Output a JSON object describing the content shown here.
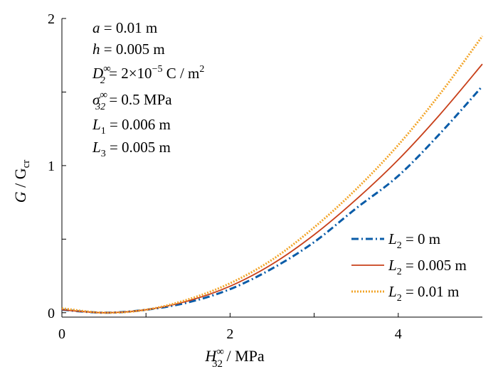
{
  "chart_data": {
    "type": "line",
    "xlabel": {
      "main": "H",
      "sup": "∞",
      "sub": "32",
      "tail": " / MPa"
    },
    "ylabel": {
      "main": "G",
      "mid": " / G",
      "sub": "cr"
    },
    "xlim": [
      0,
      5
    ],
    "ylim": [
      -0.03,
      2
    ],
    "xticks": [
      0,
      2,
      4
    ],
    "yticks": [
      0,
      1,
      2
    ],
    "x_minor_ticks": [
      1,
      3
    ],
    "y_minor_ticks": [
      0.5,
      1.5
    ],
    "grid": false,
    "legend_position": "bottom-right",
    "params": [
      {
        "sym": "a",
        "text": " = 0.01 m"
      },
      {
        "sym": "h",
        "text": " = 0.005 m"
      },
      {
        "sym": "D",
        "sup": "∞",
        "sub": "2",
        "text": " = 2×10",
        "exp": "−5",
        "text2": " C / m",
        "exp2": "2"
      },
      {
        "sym": "σ",
        "sup": "∞",
        "sub": "32",
        "text": " = 0.5 MPa"
      },
      {
        "sym": "L",
        "sub": "1",
        "text": " = 0.006 m"
      },
      {
        "sym": "L",
        "sub": "3",
        "text": " = 0.005 m"
      }
    ],
    "series": [
      {
        "name": "L2 = 0 m",
        "sym": "L",
        "sub": "2",
        "text": " = 0 m",
        "color": "#0a5ca8",
        "dash": "10,4,2,4",
        "width": 3,
        "x": [
          0,
          0.5,
          1,
          1.5,
          2,
          2.5,
          3,
          3.5,
          4,
          4.5,
          5
        ],
        "y": [
          0.02,
          0.0,
          0.02,
          0.07,
          0.16,
          0.3,
          0.48,
          0.71,
          0.93,
          1.22,
          1.54
        ]
      },
      {
        "name": "L2 = 0.005 m",
        "sym": "L",
        "sub": "2",
        "text": " = 0.005 m",
        "color": "#c8401a",
        "dash": "",
        "width": 1.8,
        "x": [
          0,
          0.5,
          1,
          1.5,
          2,
          2.5,
          3,
          3.5,
          4,
          4.5,
          5
        ],
        "y": [
          0.02,
          0.0,
          0.02,
          0.08,
          0.18,
          0.33,
          0.53,
          0.77,
          1.04,
          1.35,
          1.69
        ]
      },
      {
        "name": "L2 = 0.01 m",
        "sym": "L",
        "sub": "2",
        "text": " = 0.01 m",
        "color": "#f2a52a",
        "dash": "2,2",
        "width": 3,
        "x": [
          0,
          0.5,
          1,
          1.5,
          2,
          2.5,
          3,
          3.5,
          4,
          4.5,
          5
        ],
        "y": [
          0.03,
          0.0,
          0.02,
          0.09,
          0.2,
          0.36,
          0.58,
          0.84,
          1.14,
          1.49,
          1.88
        ]
      }
    ]
  }
}
